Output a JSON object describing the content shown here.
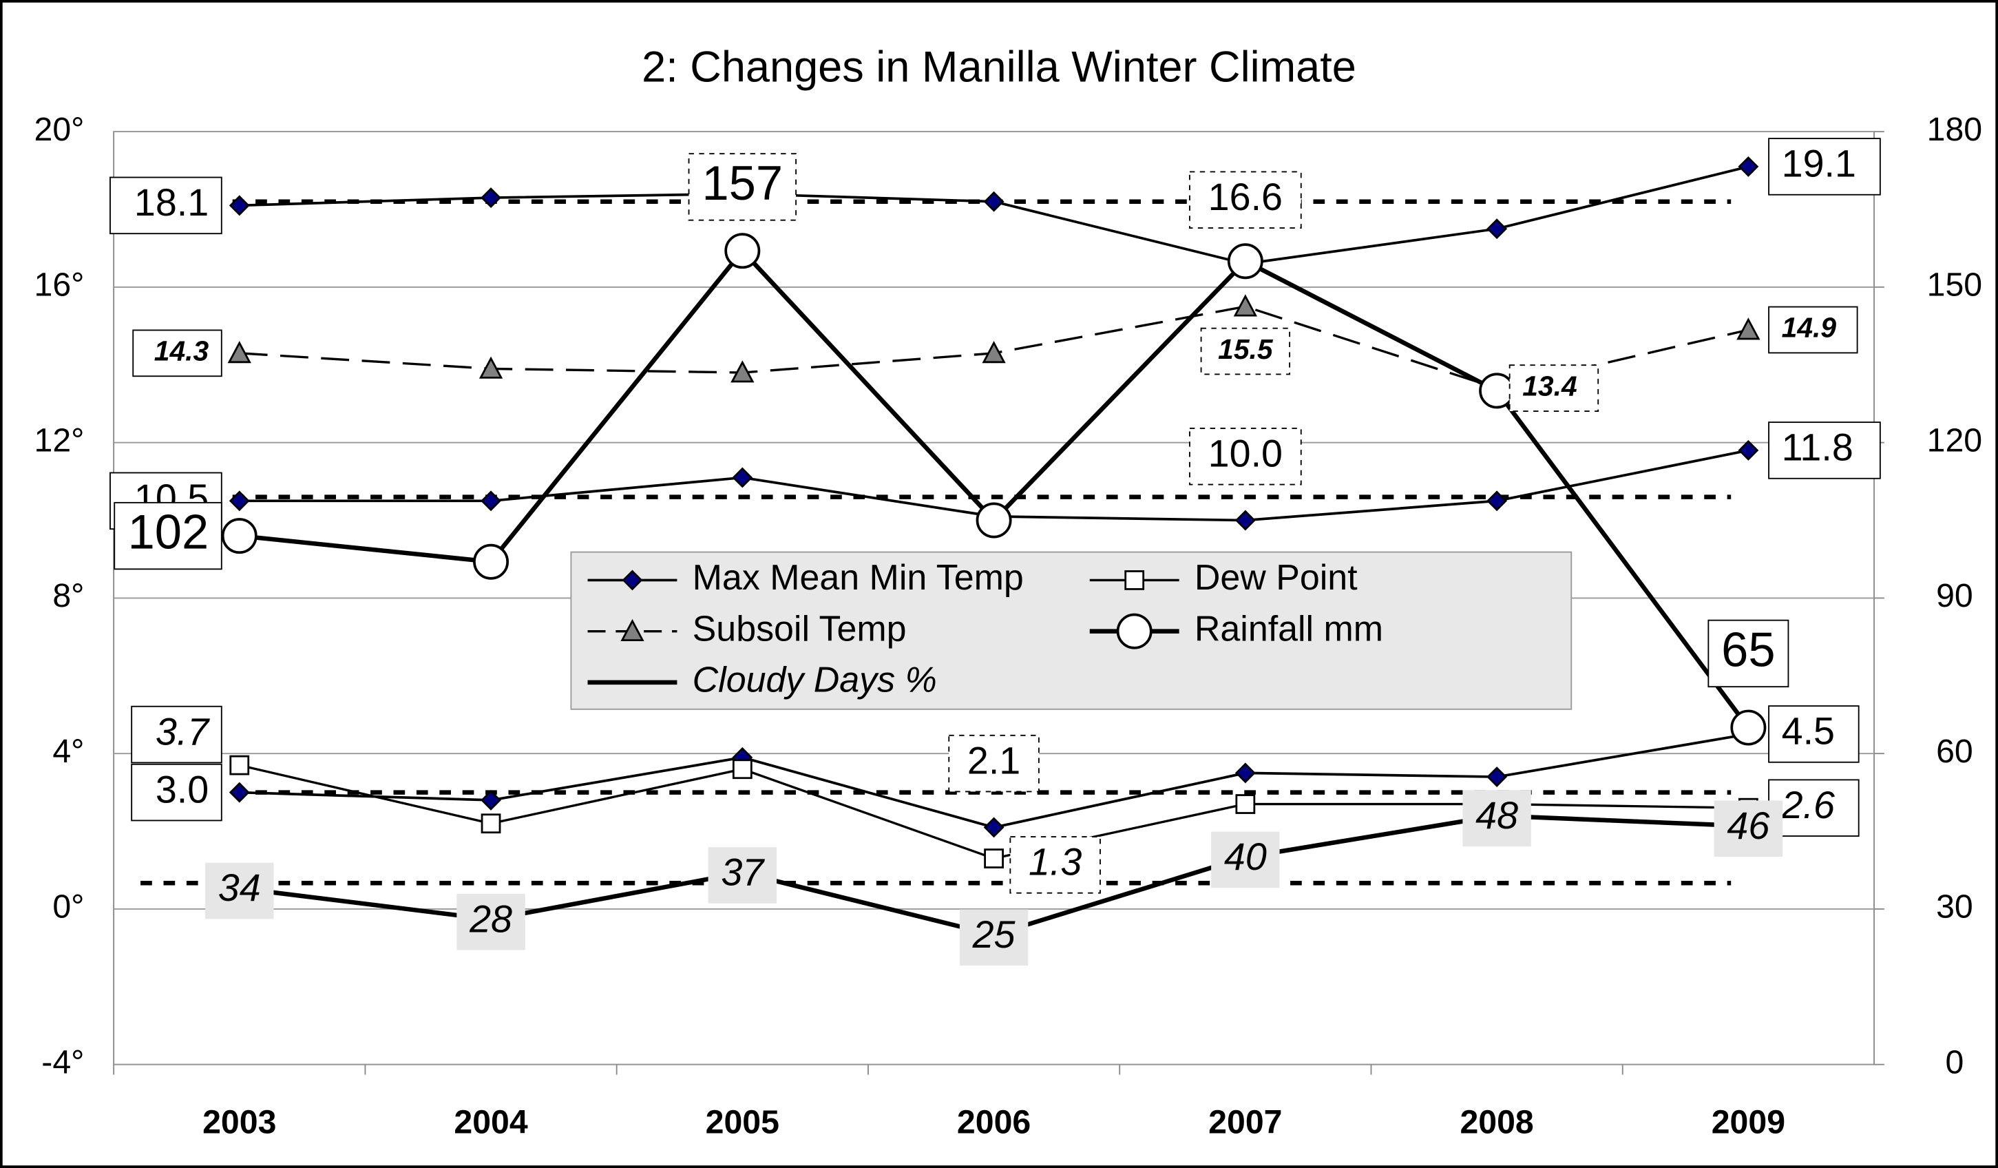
{
  "chart_data": {
    "type": "line",
    "title": "2: Changes in Manilla Winter Climate",
    "categories": [
      "2003",
      "2004",
      "2005",
      "2006",
      "2007",
      "2008",
      "2009"
    ],
    "ylim": [
      -4,
      20
    ],
    "yticks": [
      {
        "value": -4,
        "label": "-4°"
      },
      {
        "value": 0,
        "label": "0°"
      },
      {
        "value": 4,
        "label": "4°"
      },
      {
        "value": 8,
        "label": "8°"
      },
      {
        "value": 12,
        "label": "12°"
      },
      {
        "value": 16,
        "label": "16°"
      },
      {
        "value": 20,
        "label": "20°"
      }
    ],
    "y2lim": [
      0,
      180
    ],
    "y2ticks": [
      0,
      30,
      60,
      90,
      120,
      150,
      180
    ],
    "grid": true,
    "series": [
      {
        "name": "Max Mean Min Temp",
        "color": "#000080",
        "marker": "diamond",
        "values": [
          18.1,
          18.3,
          18.4,
          18.2,
          16.6,
          17.5,
          19.1
        ],
        "value_labels": [
          "18.1",
          null,
          null,
          null,
          "16.6",
          null,
          "19.1"
        ]
      },
      {
        "color": "#000080",
        "marker": "diamond",
        "values": [
          10.5,
          10.5,
          11.1,
          10.1,
          10.0,
          10.5,
          11.8
        ],
        "value_labels": [
          "10.5",
          null,
          null,
          null,
          "10.0",
          null,
          "11.8"
        ]
      },
      {
        "color": "#000080",
        "marker": "diamond",
        "values": [
          3.0,
          2.8,
          3.9,
          2.1,
          3.5,
          3.4,
          4.5
        ],
        "value_labels": [
          "3.0",
          null,
          null,
          "2.1",
          null,
          null,
          "4.5"
        ]
      },
      {
        "name": "Dew Point",
        "color": "#000000",
        "marker": "square",
        "values": [
          3.7,
          2.2,
          3.6,
          1.3,
          2.7,
          2.7,
          2.6
        ],
        "value_labels": [
          "3.7",
          null,
          null,
          "1.3",
          null,
          null,
          "2.6"
        ]
      },
      {
        "name": "Subsoil Temp",
        "color": "#808080",
        "marker": "triangle",
        "line_style": "dashed",
        "values": [
          14.3,
          13.9,
          13.8,
          14.3,
          15.5,
          13.4,
          14.9
        ],
        "value_labels": [
          "14.3",
          null,
          null,
          null,
          "15.5",
          "13.4",
          "14.9"
        ]
      },
      {
        "name": "Rainfall mm",
        "color": "#000000",
        "marker": "circle",
        "axis": "y2",
        "values": [
          102,
          97,
          157,
          105,
          155,
          130,
          65
        ],
        "value_labels": [
          "102",
          null,
          "157",
          null,
          null,
          null,
          "65"
        ]
      },
      {
        "name": "Cloudy Days %",
        "color": "#000000",
        "axis": "y2",
        "values": [
          34,
          28,
          37,
          25,
          40,
          48,
          46
        ],
        "value_labels": [
          "34",
          "28",
          "37",
          "25",
          "40",
          "48",
          "46"
        ]
      }
    ],
    "reference_lines": [
      {
        "value": 18.2
      },
      {
        "value": 10.6
      },
      {
        "value": 3.0
      },
      {
        "value": 35,
        "axis": "y2"
      }
    ]
  }
}
